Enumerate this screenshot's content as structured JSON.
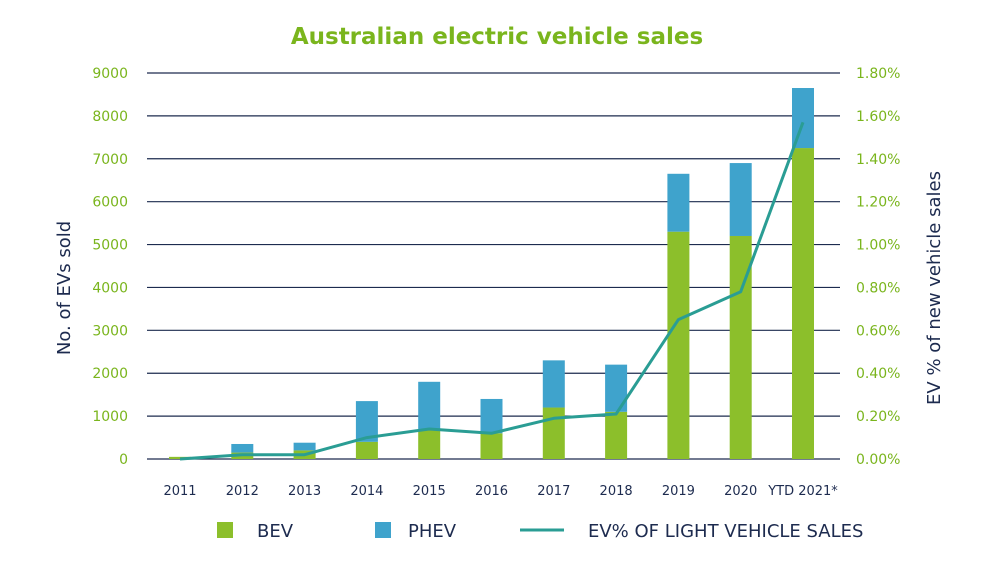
{
  "colors": {
    "bev": "#8cbf2b",
    "phev": "#3fa3cc",
    "line": "#2a9d94",
    "title": "#7ab51d",
    "left_axis_text": "#7ab51d",
    "right_axis_text": "#7ab51d",
    "axis_label": "#1d2b4f",
    "grid": "#1d2b4f",
    "x_tick": "#1d2b4f"
  },
  "chart_data": {
    "type": "bar",
    "stacked": true,
    "title": "Australian electric vehicle sales",
    "ylabel": "No. of EVs sold",
    "y2label": "EV % of new vehicle sales",
    "ylim": [
      0,
      9000
    ],
    "y2lim": [
      0,
      1.8
    ],
    "yticks": [
      "0",
      "1000",
      "2000",
      "3000",
      "4000",
      "5000",
      "6000",
      "7000",
      "8000",
      "9000"
    ],
    "y2ticks": [
      "0.00%",
      "0.20%",
      "0.40%",
      "0.60%",
      "0.80%",
      "1.00%",
      "1.20%",
      "1.40%",
      "1.60%",
      "1.80%"
    ],
    "categories": [
      "2011",
      "2012",
      "2013",
      "2014",
      "2015",
      "2016",
      "2017",
      "2018",
      "2019",
      "2020",
      "YTD 2021*"
    ],
    "series": [
      {
        "name": "BEV",
        "type": "bar",
        "values": [
          50,
          150,
          200,
          400,
          700,
          600,
          1200,
          1100,
          5300,
          5200,
          7250
        ]
      },
      {
        "name": "PHEV",
        "type": "bar",
        "values": [
          0,
          200,
          180,
          950,
          1100,
          800,
          1100,
          1100,
          1350,
          1700,
          1400
        ]
      },
      {
        "name": "EV% OF LIGHT VEHICLE SALES",
        "type": "line",
        "axis": "right",
        "values": [
          0.0,
          0.02,
          0.02,
          0.1,
          0.14,
          0.12,
          0.19,
          0.21,
          0.65,
          0.78,
          1.57
        ]
      }
    ],
    "legend_position": "bottom",
    "grid": true
  }
}
